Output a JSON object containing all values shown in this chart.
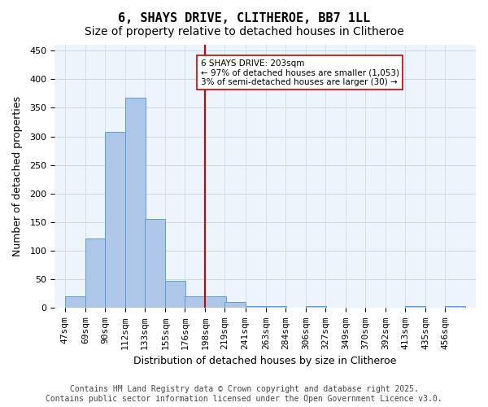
{
  "title1": "6, SHAYS DRIVE, CLITHEROE, BB7 1LL",
  "title2": "Size of property relative to detached houses in Clitheroe",
  "xlabel": "Distribution of detached houses by size in Clitheroe",
  "ylabel": "Number of detached properties",
  "bar_color": "#aec6e8",
  "bar_edge_color": "#5a9fd4",
  "grid_color": "#c8d8e8",
  "background_color": "#eef4fb",
  "vline_x": 198,
  "vline_color": "#cc0000",
  "annotation_text": "6 SHAYS DRIVE: 203sqm\n← 97% of detached houses are smaller (1,053)\n3% of semi-detached houses are larger (30) →",
  "annotation_box_color": "#ffffff",
  "annotation_box_edge": "#cc0000",
  "bins": [
    47,
    69,
    90,
    112,
    133,
    155,
    176,
    198,
    219,
    241,
    263,
    284,
    306,
    327,
    349,
    370,
    392,
    413,
    435,
    456,
    478
  ],
  "values": [
    20,
    122,
    308,
    368,
    155,
    47,
    20,
    20,
    10,
    3,
    3,
    0,
    3,
    0,
    0,
    0,
    0,
    3,
    0,
    3
  ],
  "ylim": [
    0,
    460
  ],
  "yticks": [
    0,
    50,
    100,
    150,
    200,
    250,
    300,
    350,
    400,
    450
  ],
  "footer_text": "Contains HM Land Registry data © Crown copyright and database right 2025.\nContains public sector information licensed under the Open Government Licence v3.0.",
  "title1_fontsize": 11,
  "title2_fontsize": 10,
  "xlabel_fontsize": 9,
  "ylabel_fontsize": 9,
  "tick_fontsize": 8,
  "footer_fontsize": 7
}
